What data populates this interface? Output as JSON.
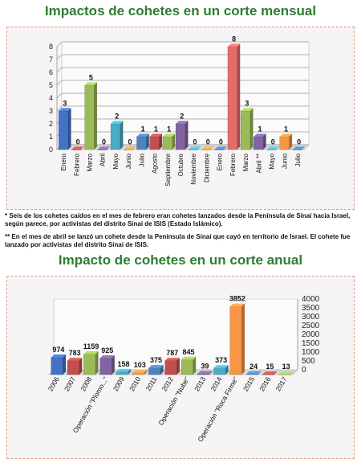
{
  "page": {
    "title_monthly": "Impactos de cohetes en un corte mensual",
    "title_annual": "Impacto de cohetes en un corte anual",
    "note_1": "* Seis de los cohetes caídos en el mes de febrero eran cohetes lanzados desde la Península de Sinaí hacia Israel, según parece, por activistas del distrito Sinaí de ISIS (Estado Islámico).",
    "note_2": "** En el mes de abril se lanzó un cohete desde la Península de Sinaí que cayó en territorio de Israel. El cohete fue lanzado por activistas del distrito Sinaí de ISIS."
  },
  "chart_data": [
    {
      "type": "bar",
      "title": "Impactos de cohetes en un corte mensual",
      "categories": [
        "Enero",
        "Febrero",
        "Marzo",
        "Abril",
        "Mayo",
        "Junio",
        "Julio",
        "Agosto",
        "Septiembre",
        "Octubre",
        "Noviembre",
        "Diciembre",
        "Enero",
        "Febrero",
        "Marzo",
        "Abril **",
        "Mayo",
        "Junio",
        "Julio"
      ],
      "values": [
        3,
        0,
        5,
        0,
        2,
        0,
        1,
        1,
        1,
        2,
        0,
        0,
        0,
        8,
        3,
        1,
        0,
        1,
        0
      ],
      "colors": [
        "#4472c4",
        "#c0504d",
        "#9bbb59",
        "#8064a2",
        "#4bacc6",
        "#f79646",
        "#4f81bd",
        "#c0504d",
        "#9bbb59",
        "#8064a2",
        "#4bacc6",
        "#f79646",
        "#4f81bd",
        "#e46c6c",
        "#9bbb59",
        "#8064a2",
        "#4bacc6",
        "#f79646",
        "#4f81bd"
      ],
      "ylim": [
        0,
        8
      ],
      "yticks": [
        0,
        1,
        2,
        3,
        4,
        5,
        6,
        7,
        8
      ],
      "grid": true,
      "axis_side": "left"
    },
    {
      "type": "bar",
      "title": "Impacto de cohetes en un corte anual",
      "categories": [
        "2006",
        "2007",
        "2008",
        "Operación \"Plomo...\"",
        "2009",
        "2010",
        "2011",
        "2012",
        "Operación \"Nube\"",
        "2013",
        "2014",
        "Operación \"Roca Firme\"",
        "2015",
        "2016",
        "2017"
      ],
      "values": [
        974,
        783,
        1159,
        925,
        158,
        103,
        375,
        787,
        845,
        39,
        373,
        3852,
        24,
        15,
        13
      ],
      "colors": [
        "#4472c4",
        "#c0504d",
        "#9bbb59",
        "#8064a2",
        "#4bacc6",
        "#f79646",
        "#4f81bd",
        "#c0504d",
        "#9bbb59",
        "#8064a2",
        "#4bacc6",
        "#f79646",
        "#4f81bd",
        "#c0504d",
        "#9bbb59"
      ],
      "ylim": [
        0,
        4000
      ],
      "yticks": [
        0,
        500,
        1000,
        1500,
        2000,
        2500,
        3000,
        3500,
        4000
      ],
      "grid": false,
      "axis_side": "right"
    }
  ]
}
